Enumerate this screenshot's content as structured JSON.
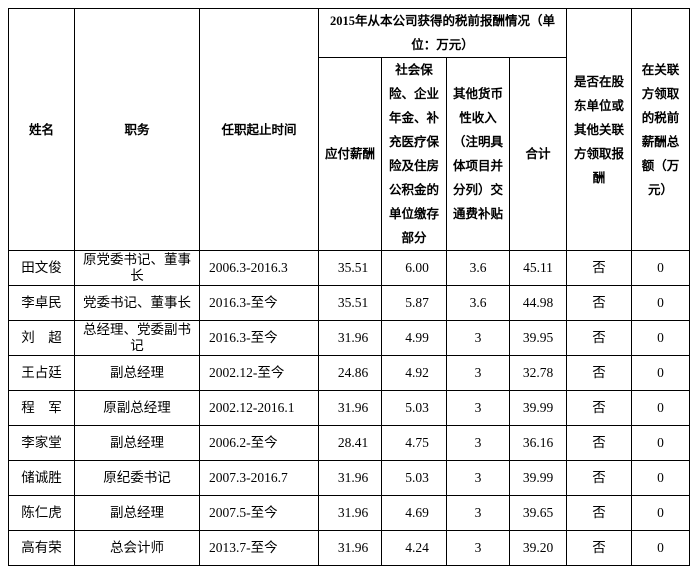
{
  "table": {
    "header": {
      "col_name": "姓名",
      "col_position": "职务",
      "col_term": "任职起止时间",
      "group_title": "2015年从本公司获得的税前报酬情况（单位：万元）",
      "sub_salary": "应付薪酬",
      "sub_insurance": "社会保险、企业年金、补充医疗保险及住房公积金的单位缴存部分",
      "sub_other": "其他货币性收入（注明具体项目并分列）交通费补贴",
      "sub_total": "合计",
      "col_shareholder": "是否在股东单位或其他关联方领取报酬",
      "col_related": "在关联方领取的税前薪酬总额（万元）"
    },
    "rows": [
      {
        "name": "田文俊",
        "position": "原党委书记、董事长",
        "term": "2006.3-2016.3",
        "salary": "35.51",
        "insurance": "6.00",
        "other": "3.6",
        "total": "45.11",
        "shareholder": "否",
        "related": "0"
      },
      {
        "name": "李卓民",
        "position": "党委书记、董事长",
        "term": "2016.3-至今",
        "salary": "35.51",
        "insurance": "5.87",
        "other": "3.6",
        "total": "44.98",
        "shareholder": "否",
        "related": "0"
      },
      {
        "name": "刘　超",
        "position": "总经理、党委副书记",
        "term": "2016.3-至今",
        "salary": "31.96",
        "insurance": "4.99",
        "other": "3",
        "total": "39.95",
        "shareholder": "否",
        "related": "0"
      },
      {
        "name": "王占廷",
        "position": "副总经理",
        "term": "2002.12-至今",
        "salary": "24.86",
        "insurance": "4.92",
        "other": "3",
        "total": "32.78",
        "shareholder": "否",
        "related": "0"
      },
      {
        "name": "程　军",
        "position": "原副总经理",
        "term": "2002.12-2016.1",
        "salary": "31.96",
        "insurance": "5.03",
        "other": "3",
        "total": "39.99",
        "shareholder": "否",
        "related": "0"
      },
      {
        "name": "李家堂",
        "position": "副总经理",
        "term": "2006.2-至今",
        "salary": "28.41",
        "insurance": "4.75",
        "other": "3",
        "total": "36.16",
        "shareholder": "否",
        "related": "0"
      },
      {
        "name": "储诚胜",
        "position": "原纪委书记",
        "term": "2007.3-2016.7",
        "salary": "31.96",
        "insurance": "5.03",
        "other": "3",
        "total": "39.99",
        "shareholder": "否",
        "related": "0"
      },
      {
        "name": "陈仁虎",
        "position": "副总经理",
        "term": "2007.5-至今",
        "salary": "31.96",
        "insurance": "4.69",
        "other": "3",
        "total": "39.65",
        "shareholder": "否",
        "related": "0"
      },
      {
        "name": "高有荣",
        "position": "总会计师",
        "term": "2013.7-至今",
        "salary": "31.96",
        "insurance": "4.24",
        "other": "3",
        "total": "39.20",
        "shareholder": "否",
        "related": "0"
      }
    ]
  }
}
